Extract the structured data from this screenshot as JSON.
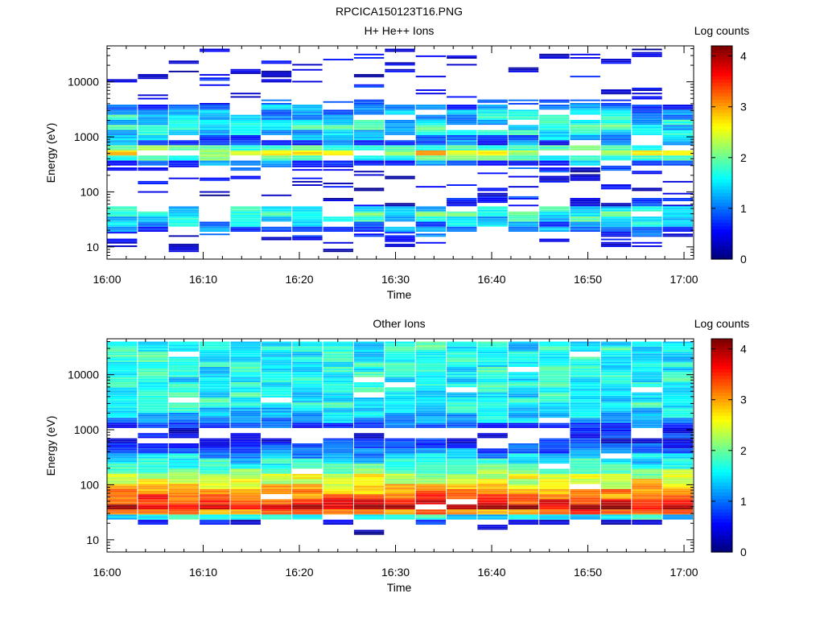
{
  "page_title": "RPCICA150123T16.PNG",
  "chart_data": [
    {
      "type": "heatmap",
      "title": "H+ He++ Ions",
      "xlabel": "Time",
      "ylabel": "Energy (eV)",
      "x_ticks": [
        "16:00",
        "16:10",
        "16:20",
        "16:30",
        "16:40",
        "16:50",
        "17:00"
      ],
      "xlim": [
        "16:00",
        "17:01"
      ],
      "y_scale": "log",
      "y_ticks": [
        10,
        100,
        1000,
        10000
      ],
      "ylim": [
        6,
        45000
      ],
      "colorbar": {
        "label": "Log counts",
        "range": [
          0,
          4.2
        ],
        "ticks": [
          0,
          1,
          2,
          3,
          4
        ],
        "colormap": "jet"
      },
      "time_bins": 19,
      "energy_bins": 40,
      "description_note": "Log counts per time/energy bin; gaps are empty bins",
      "profile_log_counts": {
        "energy_eV": [
          35,
          45,
          60,
          90,
          150,
          250,
          350,
          450,
          550,
          650,
          800,
          1200,
          1400,
          2600,
          5000,
          10000,
          30000
        ],
        "typical": [
          1.6,
          1.9,
          0.4,
          0.3,
          0.3,
          0.6,
          1.0,
          2.3,
          2.7,
          1.9,
          0.7,
          1.5,
          1.6,
          1.4,
          0.3,
          0.3,
          0.3
        ]
      }
    },
    {
      "type": "heatmap",
      "title": "Other Ions",
      "xlabel": "Time",
      "ylabel": "Energy (eV)",
      "x_ticks": [
        "16:00",
        "16:10",
        "16:20",
        "16:30",
        "16:40",
        "16:50",
        "17:00"
      ],
      "xlim": [
        "16:00",
        "17:01"
      ],
      "y_scale": "log",
      "y_ticks": [
        10,
        100,
        1000,
        10000
      ],
      "ylim": [
        6,
        45000
      ],
      "colorbar": {
        "label": "Log counts",
        "range": [
          0,
          4.2
        ],
        "ticks": [
          0,
          1,
          2,
          3,
          4
        ],
        "colormap": "jet"
      },
      "time_bins": 19,
      "energy_bins": 40,
      "profile_log_counts": {
        "energy_eV": [
          20,
          25,
          30,
          40,
          55,
          80,
          110,
          150,
          200,
          300,
          450,
          700,
          1000,
          1400,
          2600
        ],
        "typical": [
          0.3,
          1.2,
          3.0,
          3.9,
          3.4,
          2.9,
          2.6,
          2.3,
          1.9,
          1.4,
          0.9,
          0.5,
          0.3,
          1.2,
          1.6
        ]
      }
    }
  ]
}
